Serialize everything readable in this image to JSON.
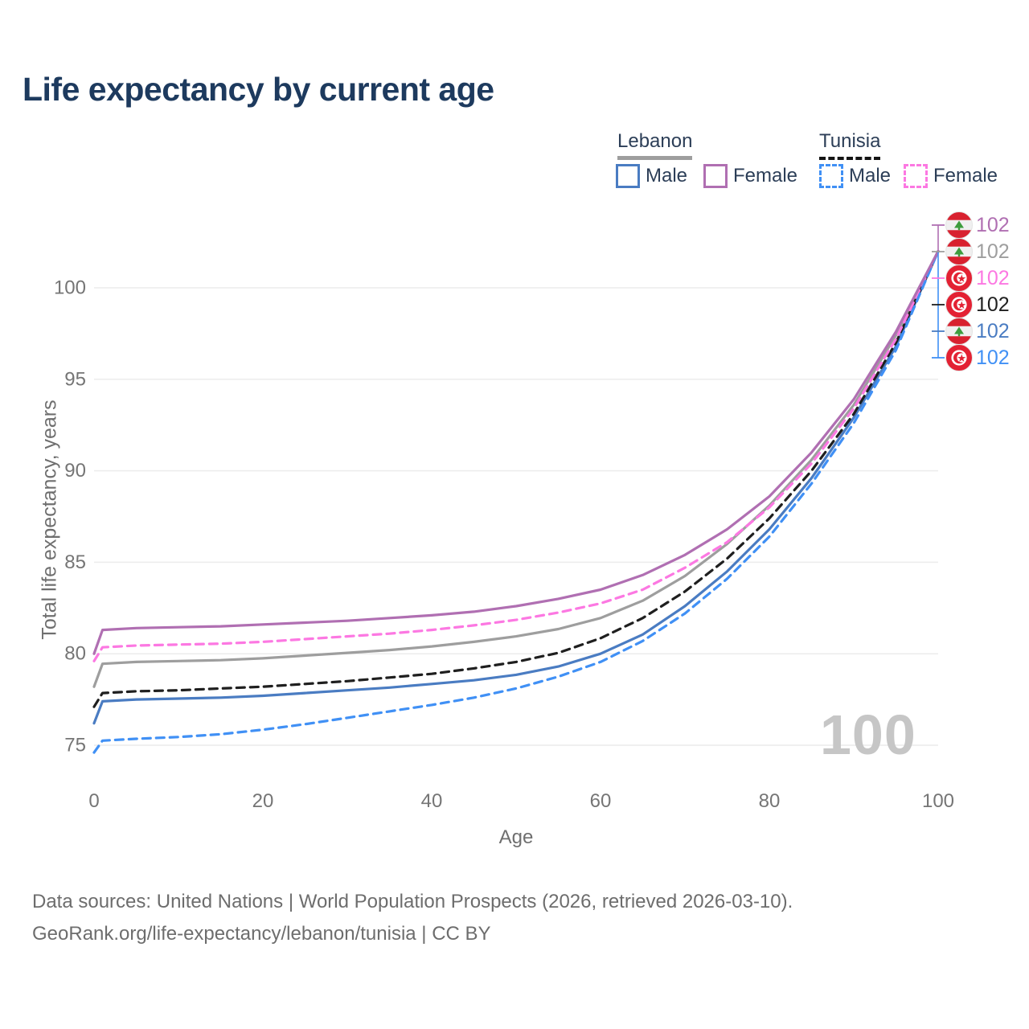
{
  "title": "Life expectancy by current age",
  "legend": {
    "lebanon_label": "Lebanon",
    "tunisia_label": "Tunisia",
    "items": [
      {
        "label": "Male",
        "group": "Lebanon",
        "color": "#4a7cc2",
        "dashed": false
      },
      {
        "label": "Female",
        "group": "Lebanon",
        "color": "#b06fb2",
        "dashed": false
      },
      {
        "label": "Male",
        "group": "Tunisia",
        "color": "#4090f5",
        "dashed": true
      },
      {
        "label": "Female",
        "group": "Tunisia",
        "color": "#fc78e2",
        "dashed": true
      }
    ]
  },
  "watermark_age": "100",
  "footer": {
    "line1": "Data sources: United Nations | World Population Prospects (2026, retrieved 2026-03-10).",
    "line2": "GeoRank.org/life-expectancy/lebanon/tunisia | CC BY"
  },
  "chart_data": {
    "type": "line",
    "title": "Life expectancy by current age",
    "xlabel": "Age",
    "ylabel": "Total life expectancy, years",
    "xlim": [
      0,
      100
    ],
    "ylim": [
      74,
      103
    ],
    "xticks": [
      0,
      20,
      40,
      60,
      80,
      100
    ],
    "yticks": [
      75,
      80,
      85,
      90,
      95,
      100
    ],
    "grid": "horizontal",
    "legend_position": "top-right",
    "x": [
      0,
      1,
      5,
      10,
      15,
      20,
      25,
      30,
      35,
      40,
      45,
      50,
      55,
      60,
      65,
      70,
      75,
      80,
      85,
      90,
      95,
      100
    ],
    "series": [
      {
        "name": "Lebanon Female",
        "country": "lebanon",
        "color": "#b06fb2",
        "dashed": false,
        "end_label": "102",
        "values": [
          80.0,
          81.3,
          81.4,
          81.45,
          81.5,
          81.6,
          81.7,
          81.8,
          81.95,
          82.1,
          82.3,
          82.6,
          83.0,
          83.5,
          84.3,
          85.4,
          86.8,
          88.6,
          91.0,
          93.9,
          97.6,
          102
        ]
      },
      {
        "name": "Lebanon",
        "country": "lebanon",
        "color": "#9e9e9e",
        "dashed": false,
        "end_label": "102",
        "values": [
          78.2,
          79.45,
          79.55,
          79.6,
          79.65,
          79.75,
          79.9,
          80.05,
          80.2,
          80.4,
          80.65,
          80.95,
          81.35,
          81.95,
          82.9,
          84.25,
          86.0,
          88.1,
          90.6,
          93.6,
          97.4,
          102
        ]
      },
      {
        "name": "Tunisia Female",
        "country": "tunisia",
        "color": "#fc78e2",
        "dashed": true,
        "end_label": "102",
        "values": [
          79.6,
          80.35,
          80.45,
          80.5,
          80.55,
          80.65,
          80.8,
          80.95,
          81.1,
          81.3,
          81.55,
          81.85,
          82.25,
          82.75,
          83.5,
          84.7,
          86.1,
          88.0,
          90.4,
          93.4,
          97.2,
          102
        ]
      },
      {
        "name": "Tunisia",
        "country": "tunisia",
        "color": "#1f1f1f",
        "dashed": true,
        "end_label": "102",
        "values": [
          77.1,
          77.85,
          77.95,
          78.0,
          78.1,
          78.2,
          78.35,
          78.5,
          78.7,
          78.9,
          79.2,
          79.55,
          80.05,
          80.85,
          81.95,
          83.4,
          85.2,
          87.4,
          90.0,
          93.1,
          97.0,
          102
        ]
      },
      {
        "name": "Lebanon Male",
        "country": "lebanon",
        "color": "#4a7cc2",
        "dashed": false,
        "end_label": "102",
        "values": [
          76.2,
          77.4,
          77.5,
          77.55,
          77.6,
          77.7,
          77.85,
          78.0,
          78.15,
          78.35,
          78.55,
          78.85,
          79.3,
          80.0,
          81.05,
          82.6,
          84.5,
          86.8,
          89.6,
          92.9,
          96.8,
          102
        ]
      },
      {
        "name": "Tunisia Male",
        "country": "tunisia",
        "color": "#4090f5",
        "dashed": true,
        "end_label": "102",
        "values": [
          74.6,
          75.25,
          75.35,
          75.45,
          75.6,
          75.85,
          76.15,
          76.5,
          76.85,
          77.2,
          77.6,
          78.1,
          78.75,
          79.55,
          80.7,
          82.2,
          84.1,
          86.4,
          89.3,
          92.6,
          96.6,
          102
        ]
      }
    ]
  }
}
